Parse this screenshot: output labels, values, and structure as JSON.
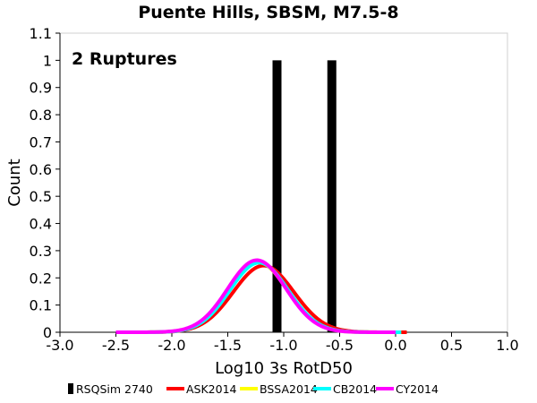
{
  "chart_data": {
    "type": "bar",
    "title": "Puente Hills, SBSM, M7.5-8",
    "xlabel": "Log10 3s RotD50",
    "ylabel": "Count",
    "xlim": [
      -3.0,
      1.0
    ],
    "ylim": [
      0,
      1.1
    ],
    "xticks": [
      "-3.0",
      "-2.5",
      "-2.0",
      "-1.5",
      "-1.0",
      "-0.5",
      "0.0",
      "0.5",
      "1.0"
    ],
    "yticks": [
      "0",
      "0.1",
      "0.2",
      "0.3",
      "0.4",
      "0.5",
      "0.6",
      "0.7",
      "0.8",
      "0.9",
      "1",
      "1.1"
    ],
    "annotation": "2 Ruptures",
    "grid": false,
    "legend_position": "bottom",
    "bars": {
      "name": "RSQSim 2740",
      "color": "#000000",
      "x_ranges": [
        [
          -1.1,
          -1.02
        ],
        [
          -0.61,
          -0.53
        ]
      ],
      "values": [
        1,
        1
      ]
    },
    "curves": [
      {
        "name": "ASK2014",
        "color": "#ff0000",
        "mean": -1.18,
        "sd": 0.27,
        "peak": 0.245,
        "x_range": [
          -2.5,
          0.1
        ]
      },
      {
        "name": "BSSA2014",
        "color": "#ffff00",
        "mean": -1.23,
        "sd": 0.26,
        "peak": 0.258,
        "x_range": [
          -2.5,
          0.05
        ]
      },
      {
        "name": "CB2014",
        "color": "#00ffff",
        "mean": -1.22,
        "sd": 0.26,
        "peak": 0.256,
        "x_range": [
          -2.5,
          0.05
        ]
      },
      {
        "name": "CY2014",
        "color": "#ff00ff",
        "mean": -1.24,
        "sd": 0.26,
        "peak": 0.265,
        "x_range": [
          -2.5,
          0.0
        ]
      }
    ]
  }
}
